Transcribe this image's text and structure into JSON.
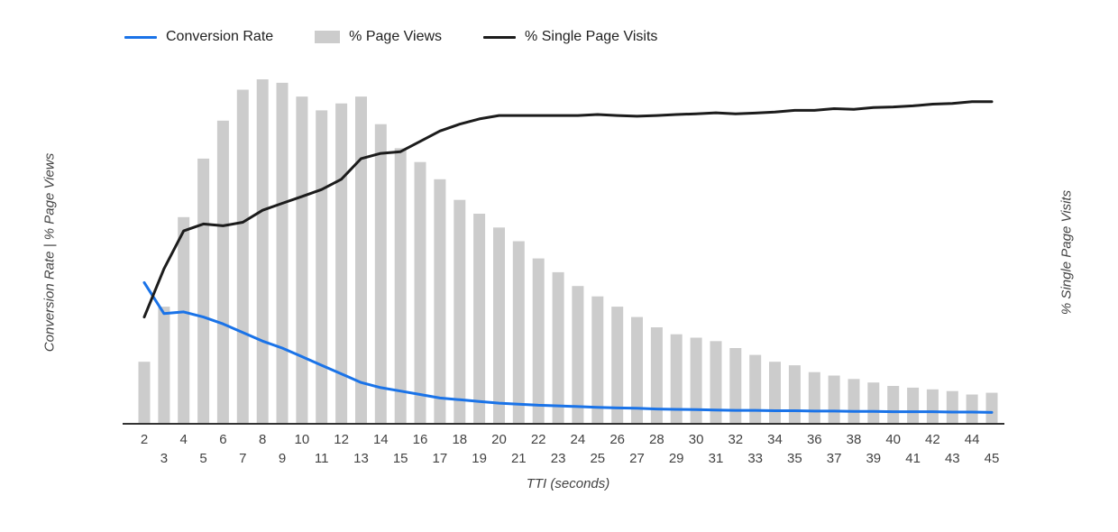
{
  "legend": {
    "items": [
      {
        "label": "Conversion Rate",
        "swatch": "line",
        "color": "#1a73e8"
      },
      {
        "label": "% Page Views",
        "swatch": "rect",
        "color": "#cccccc"
      },
      {
        "label": "% Single Page Visits",
        "swatch": "line",
        "color": "#1c1c1c"
      }
    ]
  },
  "axes": {
    "left_title": "Conversion Rate | % Page Views",
    "right_title": "% Single Page Visits",
    "x_title": "TTI (seconds)"
  },
  "chart_data": {
    "type": "bar",
    "subtype": "combo-bar-line",
    "title": "",
    "xlabel": "TTI (seconds)",
    "ylabel_left": "Conversion Rate | % Page Views",
    "ylabel_right": "% Single Page Visits",
    "ylim": [
      0,
      100
    ],
    "grid": false,
    "legend_position": "top",
    "x": [
      2,
      3,
      4,
      5,
      6,
      7,
      8,
      9,
      10,
      11,
      12,
      13,
      14,
      15,
      16,
      17,
      18,
      19,
      20,
      21,
      22,
      23,
      24,
      25,
      26,
      27,
      28,
      29,
      30,
      31,
      32,
      33,
      34,
      35,
      36,
      37,
      38,
      39,
      40,
      41,
      42,
      43,
      44,
      45
    ],
    "series": [
      {
        "name": "% Page Views",
        "type": "bar",
        "axis": "left",
        "color": "#cccccc",
        "values": [
          18,
          34,
          60,
          77,
          88,
          97,
          100,
          99,
          95,
          91,
          93,
          95,
          87,
          80,
          76,
          71,
          65,
          61,
          57,
          53,
          48,
          44,
          40,
          37,
          34,
          31,
          28,
          26,
          25,
          24,
          22,
          20,
          18,
          17,
          15,
          14,
          13,
          12,
          11,
          10.5,
          10,
          9.5,
          8.5,
          9
        ]
      },
      {
        "name": "Conversion Rate",
        "type": "line",
        "axis": "left",
        "color": "#1a73e8",
        "values": [
          41,
          32,
          32.5,
          31,
          29,
          26.5,
          24,
          22,
          19.5,
          17,
          14.5,
          12,
          10.5,
          9.5,
          8.5,
          7.5,
          7,
          6.5,
          6,
          5.7,
          5.4,
          5.2,
          5,
          4.8,
          4.6,
          4.5,
          4.3,
          4.2,
          4.1,
          4,
          3.9,
          3.9,
          3.8,
          3.8,
          3.7,
          3.7,
          3.6,
          3.6,
          3.5,
          3.5,
          3.5,
          3.4,
          3.4,
          3.3
        ]
      },
      {
        "name": "% Single Page Visits",
        "type": "line",
        "axis": "right",
        "color": "#1c1c1c",
        "values": [
          31,
          45,
          56,
          58,
          57.5,
          58.5,
          62,
          64,
          66,
          68,
          71,
          77,
          78.5,
          79,
          82,
          85,
          87,
          88.5,
          89.5,
          89.5,
          89.5,
          89.5,
          89.5,
          89.8,
          89.5,
          89.3,
          89.5,
          89.8,
          90,
          90.3,
          90,
          90.2,
          90.5,
          91,
          91,
          91.5,
          91.3,
          91.8,
          92,
          92.3,
          92.8,
          93,
          93.5,
          93.5
        ]
      }
    ]
  }
}
